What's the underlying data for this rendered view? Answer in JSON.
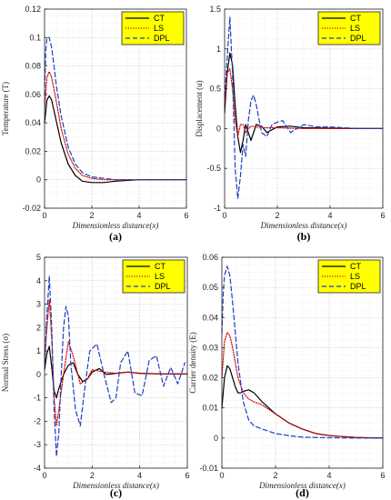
{
  "chart_data": [
    {
      "type": "line",
      "panel_label": "(a)",
      "title": "",
      "xlabel": "Dimensionless distance(x)",
      "ylabel": "Temperature (T)",
      "xlim": [
        0,
        6
      ],
      "ylim": [
        -0.02,
        0.12
      ],
      "xticks": [
        0,
        2,
        4,
        6
      ],
      "yticks": [
        -0.02,
        0,
        0.02,
        0.04,
        0.06,
        0.08,
        0.1,
        0.12
      ],
      "ytick_labels": [
        "-0.02",
        "0",
        "0.02",
        "0.04",
        "0.06",
        "0.08",
        "0.1",
        "0.12"
      ],
      "grid": true,
      "legend_position": "top-right",
      "series": [
        {
          "name": "CT",
          "color": "#000000",
          "style": "solid",
          "x": [
            0,
            0.1,
            0.2,
            0.3,
            0.5,
            0.7,
            1.0,
            1.3,
            1.6,
            2.0,
            2.5,
            3.0,
            4.0,
            5.0,
            6.0
          ],
          "y": [
            0.04,
            0.056,
            0.059,
            0.056,
            0.041,
            0.026,
            0.011,
            0.003,
            -0.001,
            -0.002,
            -0.002,
            -0.001,
            0,
            0,
            0
          ]
        },
        {
          "name": "LS",
          "color": "#d40000",
          "style": "dotted",
          "x": [
            0,
            0.1,
            0.2,
            0.3,
            0.5,
            0.7,
            1.0,
            1.3,
            1.6,
            2.0,
            2.5,
            3.0,
            4.0,
            5.0,
            6.0
          ],
          "y": [
            0.05,
            0.072,
            0.076,
            0.072,
            0.055,
            0.036,
            0.018,
            0.008,
            0.003,
            0.001,
            0,
            0,
            0,
            0,
            0
          ]
        },
        {
          "name": "DPL",
          "color": "#1f3fbf",
          "style": "dashed",
          "x": [
            0,
            0.05,
            0.1,
            0.2,
            0.3,
            0.4,
            0.5,
            0.7,
            1.0,
            1.3,
            1.6,
            2.0,
            2.5,
            3.0,
            4.0,
            5.0,
            6.0
          ],
          "y": [
            0.06,
            0.09,
            0.1,
            0.1,
            0.093,
            0.08,
            0.066,
            0.045,
            0.023,
            0.011,
            0.005,
            0.002,
            0.001,
            0,
            0,
            0,
            0
          ]
        }
      ]
    },
    {
      "type": "line",
      "panel_label": "(b)",
      "title": "",
      "xlabel": "Dimensionless distance(x)",
      "ylabel": "Displacement (u)",
      "xlim": [
        0,
        6
      ],
      "ylim": [
        -1,
        1.5
      ],
      "xticks": [
        0,
        2,
        4,
        6
      ],
      "yticks": [
        -1,
        -0.5,
        0,
        0.5,
        1,
        1.5
      ],
      "ytick_labels": [
        "-1",
        "-0.5",
        "0",
        "0.5",
        "1",
        "1.5"
      ],
      "grid": true,
      "legend_position": "top-right",
      "series": [
        {
          "name": "CT",
          "color": "#000000",
          "style": "solid",
          "x": [
            0,
            0.1,
            0.2,
            0.3,
            0.4,
            0.5,
            0.6,
            0.7,
            0.8,
            0.9,
            1.0,
            1.2,
            1.4,
            1.6,
            2.0,
            2.5,
            3.0,
            4.0,
            5.0,
            6.0
          ],
          "y": [
            0.2,
            0.7,
            0.95,
            0.8,
            0.3,
            -0.1,
            -0.3,
            -0.15,
            0.05,
            -0.05,
            -0.15,
            0.05,
            0.03,
            -0.05,
            0.02,
            0.03,
            0.01,
            0.005,
            0,
            0
          ]
        },
        {
          "name": "LS",
          "color": "#d40000",
          "style": "dotted",
          "x": [
            0,
            0.1,
            0.2,
            0.3,
            0.4,
            0.5,
            0.6,
            0.7,
            0.8,
            0.9,
            1.0,
            1.2,
            1.5,
            2.0,
            2.5,
            3.0,
            4.0,
            5.0,
            6.0
          ],
          "y": [
            0.3,
            0.7,
            0.75,
            0.5,
            0.1,
            -0.1,
            0.05,
            0.05,
            -0.05,
            0,
            0.03,
            0.02,
            0.01,
            0.01,
            0.005,
            0,
            0,
            0,
            0
          ]
        },
        {
          "name": "DPL",
          "color": "#1f3fbf",
          "style": "dashed",
          "x": [
            0,
            0.1,
            0.2,
            0.3,
            0.4,
            0.5,
            0.6,
            0.7,
            0.8,
            0.9,
            1.0,
            1.1,
            1.2,
            1.4,
            1.6,
            1.8,
            2.0,
            2.2,
            2.5,
            3.0,
            3.5,
            4.0,
            5.0,
            6.0
          ],
          "y": [
            0.4,
            0.9,
            1.4,
            0.7,
            -0.5,
            -0.88,
            -0.6,
            -0.2,
            -0.35,
            0.1,
            0.35,
            0.42,
            0.3,
            -0.05,
            -0.1,
            0.05,
            0.08,
            0.1,
            -0.05,
            0.05,
            0.02,
            0.02,
            0,
            0
          ]
        }
      ]
    },
    {
      "type": "line",
      "panel_label": "(c)",
      "title": "",
      "xlabel": "Dimensionless distance(x)",
      "ylabel": "Normal Stress (σ)",
      "xlim": [
        0,
        6
      ],
      "ylim": [
        -4,
        5
      ],
      "xticks": [
        0,
        2,
        4,
        6
      ],
      "yticks": [
        -4,
        -3,
        -2,
        -1,
        0,
        1,
        2,
        3,
        4,
        5
      ],
      "ytick_labels": [
        "-4",
        "-3",
        "-2",
        "-1",
        "0",
        "1",
        "2",
        "3",
        "4",
        "5"
      ],
      "grid": true,
      "legend_position": "top-right",
      "series": [
        {
          "name": "CT",
          "color": "#000000",
          "style": "solid",
          "x": [
            0,
            0.1,
            0.2,
            0.3,
            0.4,
            0.5,
            0.6,
            0.8,
            1.0,
            1.2,
            1.4,
            1.6,
            1.8,
            2.0,
            2.3,
            2.6,
            3.0,
            3.5,
            4.0,
            5.0,
            6.0
          ],
          "y": [
            0.2,
            0.9,
            1.2,
            0.3,
            -0.7,
            -1.0,
            -0.6,
            0.0,
            0.4,
            0.5,
            0.0,
            -0.3,
            -0.2,
            0.1,
            0.25,
            0.0,
            0.05,
            0.1,
            0.05,
            0.02,
            0.02
          ]
        },
        {
          "name": "LS",
          "color": "#d40000",
          "style": "dotted",
          "x": [
            0,
            0.1,
            0.2,
            0.3,
            0.4,
            0.5,
            0.6,
            0.8,
            1.0,
            1.2,
            1.5,
            1.8,
            2.0,
            2.5,
            3.0,
            3.5,
            4.0,
            5.0,
            6.0
          ],
          "y": [
            0.5,
            2.0,
            3.2,
            1.5,
            -1.0,
            -2.2,
            -1.5,
            0.0,
            1.4,
            0.8,
            -0.4,
            -0.2,
            0.2,
            0.1,
            0.05,
            0.1,
            0.05,
            0.02,
            0.02
          ]
        },
        {
          "name": "DPL",
          "color": "#1f3fbf",
          "style": "dashed",
          "x": [
            0,
            0.1,
            0.2,
            0.3,
            0.4,
            0.5,
            0.6,
            0.7,
            0.8,
            0.9,
            1.0,
            1.1,
            1.3,
            1.5,
            1.7,
            1.9,
            2.2,
            2.5,
            2.8,
            3.0,
            3.2,
            3.5,
            3.8,
            4.1,
            4.4,
            4.7,
            5.0,
            5.3,
            5.6,
            5.9
          ],
          "y": [
            0.5,
            2.5,
            4.2,
            2.0,
            -1.5,
            -3.5,
            -2.5,
            0.0,
            2.0,
            2.9,
            2.5,
            0.5,
            -1.5,
            -2.2,
            -0.5,
            1.0,
            1.3,
            0.0,
            -1.2,
            -1.0,
            0.5,
            1.0,
            -0.8,
            -0.9,
            0.6,
            0.8,
            -0.5,
            0.3,
            -0.4,
            0.5
          ]
        }
      ]
    },
    {
      "type": "line",
      "panel_label": "(d)",
      "title": "",
      "xlabel": "Dimensionless distance(x)",
      "ylabel": "Carrier density (E)",
      "xlim": [
        0,
        6
      ],
      "ylim": [
        -0.01,
        0.06
      ],
      "xticks": [
        0,
        2,
        4,
        6
      ],
      "yticks": [
        -0.01,
        0,
        0.01,
        0.02,
        0.03,
        0.04,
        0.05,
        0.06
      ],
      "ytick_labels": [
        "-0.01",
        "0",
        "0.01",
        "0.02",
        "0.03",
        "0.04",
        "0.05",
        "0.06"
      ],
      "grid": true,
      "legend_position": "top-right",
      "series": [
        {
          "name": "CT",
          "color": "#000000",
          "style": "solid",
          "x": [
            0,
            0.1,
            0.2,
            0.3,
            0.4,
            0.5,
            0.6,
            0.7,
            0.8,
            1.0,
            1.2,
            1.5,
            2.0,
            2.5,
            3.0,
            3.5,
            4.0,
            5.0,
            6.0
          ],
          "y": [
            0.01,
            0.02,
            0.024,
            0.023,
            0.02,
            0.017,
            0.015,
            0.015,
            0.0155,
            0.016,
            0.015,
            0.012,
            0.008,
            0.005,
            0.003,
            0.0015,
            0.0008,
            0.0002,
            0
          ]
        },
        {
          "name": "LS",
          "color": "#d40000",
          "style": "dotted",
          "x": [
            0,
            0.1,
            0.2,
            0.3,
            0.4,
            0.5,
            0.6,
            0.8,
            1.0,
            1.2,
            1.5,
            2.0,
            2.5,
            3.0,
            3.5,
            4.0,
            5.0,
            6.0
          ],
          "y": [
            0.02,
            0.032,
            0.035,
            0.034,
            0.03,
            0.025,
            0.02,
            0.015,
            0.013,
            0.012,
            0.011,
            0.008,
            0.005,
            0.003,
            0.0015,
            0.0008,
            0.0002,
            0
          ]
        },
        {
          "name": "DPL",
          "color": "#1f3fbf",
          "style": "dashed",
          "x": [
            0,
            0.05,
            0.1,
            0.2,
            0.3,
            0.4,
            0.5,
            0.6,
            0.8,
            1.0,
            1.2,
            1.5,
            2.0,
            2.5,
            3.0,
            4.0,
            5.0,
            6.0
          ],
          "y": [
            0.035,
            0.048,
            0.054,
            0.057,
            0.054,
            0.045,
            0.035,
            0.025,
            0.012,
            0.006,
            0.004,
            0.003,
            0.0015,
            0.0008,
            0.0003,
            0.0001,
            0,
            0
          ]
        }
      ]
    }
  ]
}
